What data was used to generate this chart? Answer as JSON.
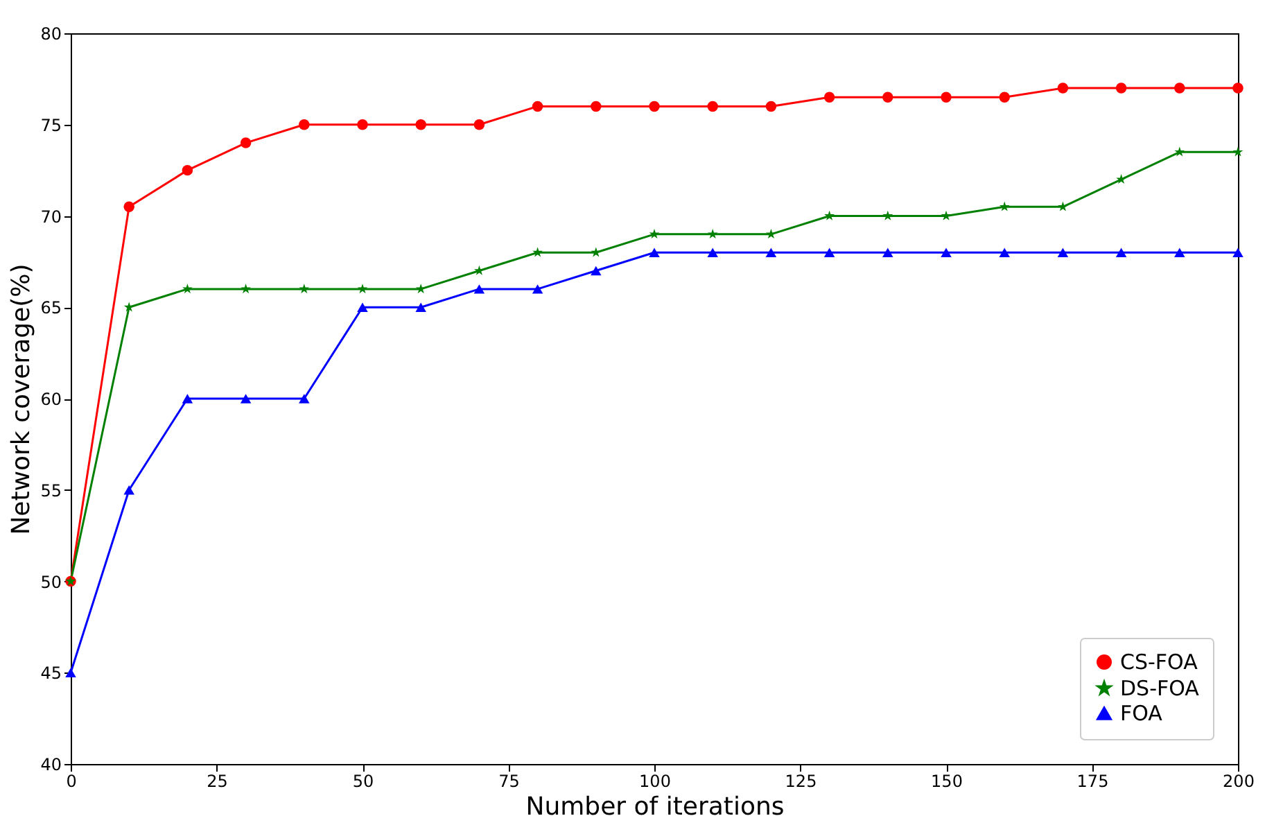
{
  "chart_data": {
    "type": "line",
    "xlabel": "Number of iterations",
    "ylabel": "Network coverage(%)",
    "x": [
      0,
      10,
      20,
      30,
      40,
      50,
      60,
      70,
      80,
      90,
      100,
      110,
      120,
      130,
      140,
      150,
      160,
      170,
      180,
      190,
      200
    ],
    "series": [
      {
        "name": "CS-FOA",
        "color": "#ff0000",
        "marker": "circle",
        "values": [
          50,
          70.5,
          72.5,
          74,
          75,
          75,
          75,
          75,
          76,
          76,
          76,
          76,
          76,
          76.5,
          76.5,
          76.5,
          76.5,
          77,
          77,
          77,
          77
        ]
      },
      {
        "name": "DS-FOA",
        "color": "#008000",
        "marker": "star",
        "values": [
          50,
          65,
          66,
          66,
          66,
          66,
          66,
          67,
          68,
          68,
          69,
          69,
          69,
          70,
          70,
          70,
          70.5,
          70.5,
          72,
          73.5,
          73.5
        ]
      },
      {
        "name": "FOA",
        "color": "#0000ff",
        "marker": "triangle",
        "values": [
          45,
          55,
          60,
          60,
          60,
          65,
          65,
          66,
          66,
          67,
          68,
          68,
          68,
          68,
          68,
          68,
          68,
          68,
          68,
          68,
          68
        ]
      }
    ],
    "xlim": [
      0,
      200
    ],
    "xticks": [
      0,
      25,
      50,
      75,
      100,
      125,
      150,
      175,
      200
    ],
    "ylim": [
      40,
      80
    ],
    "yticks": [
      40,
      45,
      50,
      55,
      60,
      65,
      70,
      75,
      80
    ],
    "grid": false,
    "legend": "bottom right",
    "line_style": "solid"
  }
}
